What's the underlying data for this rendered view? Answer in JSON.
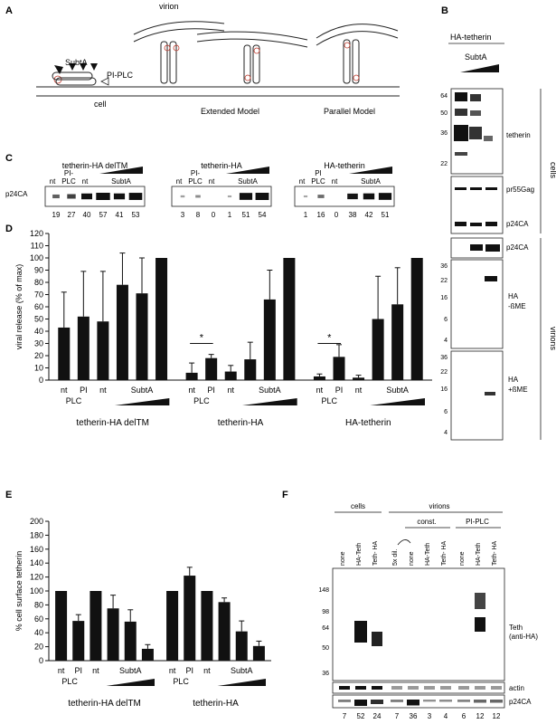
{
  "figure": {
    "panel_labels": [
      "A",
      "B",
      "C",
      "D",
      "E",
      "F"
    ],
    "A": {
      "virion": "virion",
      "cell": "cell",
      "subta": "SubtA",
      "piplc": "PI-PLC",
      "extended": "Extended Model",
      "parallel": "Parallel Model"
    },
    "B": {
      "header": "HA-tetherin",
      "subta": "SubtA",
      "cells_label": "cells",
      "virions_label": "virions",
      "tetherin": "tetherin",
      "pr55gag": "pr55Gag",
      "p24ca": "p24CA",
      "p24ca_v": "p24CA",
      "ha_minus": [
        "HA",
        "-ßME"
      ],
      "ha_plus": [
        "HA",
        "+ßME"
      ],
      "mw1": [
        "64",
        "50",
        "36",
        "22"
      ],
      "mw2": [
        "36",
        "22",
        "16",
        "6",
        "4"
      ],
      "mw3": [
        "36",
        "22",
        "16",
        "6",
        "4"
      ]
    },
    "C": {
      "row_label": "p24CA",
      "groups": [
        {
          "title": "tetherin-HA delTM",
          "lanes": [
            "nt",
            "PI-\nPLC",
            "nt"
          ],
          "subta": "SubtA",
          "nums": [
            "19",
            "27",
            "40",
            "57",
            "41",
            "53"
          ]
        },
        {
          "title": "tetherin-HA",
          "lanes": [
            "nt",
            "PI-\nPLC",
            "nt"
          ],
          "subta": "SubtA",
          "nums": [
            "3",
            "8",
            "0",
            "1",
            "51",
            "54"
          ]
        },
        {
          "title": "HA-tetherin",
          "lanes": [
            "nt",
            "PI\nPLC",
            "nt"
          ],
          "subta": "SubtA",
          "nums": [
            "1",
            "16",
            "0",
            "38",
            "42",
            "51"
          ]
        }
      ]
    },
    "F": {
      "cells": "cells",
      "virions": "virions",
      "const": "const.",
      "piplc": "PI-PLC",
      "lanes": [
        "none",
        "HA-Teth",
        "Teth- HA",
        "5x dil.",
        "none",
        "HA-Teth",
        "Teth- HA",
        "none",
        "HA-Teth",
        "Teth- HA"
      ],
      "mw": [
        "148",
        "98",
        "64",
        "50",
        "36"
      ],
      "teth": "Teth",
      "antiha": "(anti-HA)",
      "actin": "actin",
      "p24ca": "p24CA",
      "nums": [
        "7",
        "52",
        "24",
        "7",
        "36",
        "3",
        "4",
        "6",
        "12",
        "12"
      ]
    }
  },
  "chart_data": [
    {
      "type": "bar",
      "panel": "D",
      "ylabel": "viral release (% of max)",
      "ylim": [
        0,
        120
      ],
      "yticks": [
        0,
        10,
        20,
        30,
        40,
        50,
        60,
        70,
        80,
        90,
        100,
        110,
        120
      ],
      "group_names": [
        "tetherin-HA delTM",
        "tetherin-HA",
        "HA-tetherin"
      ],
      "tick_labels": [
        "nt",
        "PI",
        "nt",
        "SubtA"
      ],
      "plc": "PLC",
      "significance": "*",
      "groups": [
        {
          "name": "tetherin-HA delTM",
          "values": [
            43,
            52,
            48,
            78,
            71,
            100
          ],
          "errors": [
            29,
            37,
            41,
            26,
            29,
            0
          ]
        },
        {
          "name": "tetherin-HA",
          "values": [
            6,
            18,
            7,
            17,
            66,
            100
          ],
          "errors": [
            8,
            3,
            5,
            14,
            24,
            0
          ]
        },
        {
          "name": "HA-tetherin",
          "values": [
            3,
            19,
            2,
            50,
            62,
            100
          ],
          "errors": [
            2,
            10,
            2,
            35,
            30,
            0
          ]
        }
      ]
    },
    {
      "type": "bar",
      "panel": "E",
      "ylabel": "% cell surface tetherin",
      "ylim": [
        0,
        200
      ],
      "yticks": [
        0,
        20,
        40,
        60,
        80,
        100,
        120,
        140,
        160,
        180,
        200
      ],
      "group_names": [
        "tetherin-HA delTM",
        "tetherin-HA"
      ],
      "tick_labels": [
        "nt",
        "PI",
        "nt",
        "SubtA"
      ],
      "plc": "PLC",
      "groups": [
        {
          "name": "tetherin-HA delTM",
          "values": [
            100,
            57,
            100,
            75,
            56,
            17
          ],
          "errors": [
            0,
            9,
            0,
            19,
            17,
            6
          ]
        },
        {
          "name": "tetherin-HA",
          "values": [
            100,
            122,
            100,
            84,
            42,
            21
          ],
          "errors": [
            0,
            12,
            0,
            6,
            15,
            7
          ]
        }
      ]
    }
  ]
}
